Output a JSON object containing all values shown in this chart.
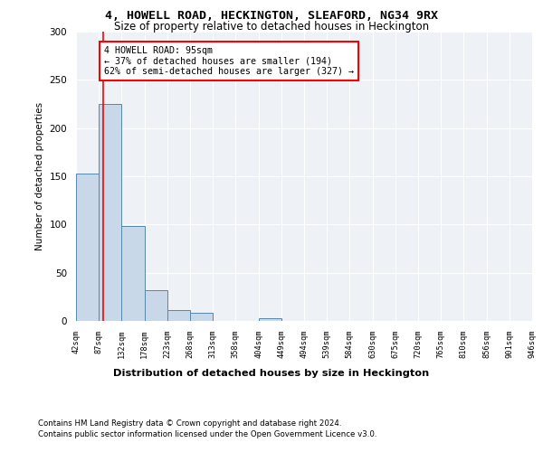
{
  "title": "4, HOWELL ROAD, HECKINGTON, SLEAFORD, NG34 9RX",
  "subtitle": "Size of property relative to detached houses in Heckington",
  "xlabel": "Distribution of detached houses by size in Heckington",
  "ylabel": "Number of detached properties",
  "bar_edges": [
    42,
    87,
    132,
    178,
    223,
    268,
    313,
    358,
    404,
    449,
    494,
    539,
    584,
    630,
    675,
    720,
    765,
    810,
    856,
    901,
    946
  ],
  "bar_heights": [
    153,
    225,
    98,
    32,
    11,
    8,
    0,
    0,
    3,
    0,
    0,
    0,
    0,
    0,
    0,
    0,
    0,
    0,
    0,
    0
  ],
  "bar_color": "#c8d8e8",
  "bar_edge_color": "#5588aa",
  "property_line_x": 95,
  "property_line_color": "red",
  "annotation_text": "4 HOWELL ROAD: 95sqm\n← 37% of detached houses are smaller (194)\n62% of semi-detached houses are larger (327) →",
  "annotation_box_color": "white",
  "annotation_box_edge": "red",
  "ylim": [
    0,
    300
  ],
  "yticks": [
    0,
    50,
    100,
    150,
    200,
    250,
    300
  ],
  "background_color": "#eef2f7",
  "footer_line1": "Contains HM Land Registry data © Crown copyright and database right 2024.",
  "footer_line2": "Contains public sector information licensed under the Open Government Licence v3.0."
}
